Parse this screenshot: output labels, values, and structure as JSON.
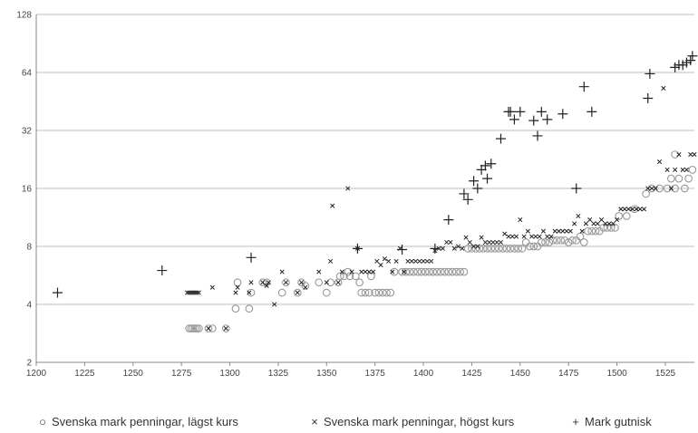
{
  "chart_data": {
    "type": "scatter",
    "title": "",
    "xlabel": "",
    "ylabel": "",
    "x_ticks": [
      1200,
      1225,
      1250,
      1275,
      1300,
      1325,
      1350,
      1375,
      1400,
      1425,
      1450,
      1475,
      1500,
      1525
    ],
    "y_ticks": [
      2,
      4,
      8,
      16,
      32,
      64,
      128
    ],
    "xlim": [
      1200,
      1540
    ],
    "ylim": [
      2,
      128
    ],
    "y_scale": "log2",
    "grid": "horizontal",
    "legend_position": "bottom",
    "series": [
      {
        "name": "Svenska mark penningar, lägst kurs",
        "marker": "circle",
        "color": "#999999",
        "points": [
          [
            1279,
            3
          ],
          [
            1280,
            3
          ],
          [
            1281,
            3
          ],
          [
            1282,
            3
          ],
          [
            1283,
            3
          ],
          [
            1284,
            3
          ],
          [
            1289,
            3
          ],
          [
            1291,
            3
          ],
          [
            1298,
            3
          ],
          [
            1303,
            3.8
          ],
          [
            1304,
            5.2
          ],
          [
            1310,
            3.8
          ],
          [
            1311,
            4.6
          ],
          [
            1317,
            5.2
          ],
          [
            1319,
            5.2
          ],
          [
            1327,
            4.6
          ],
          [
            1329,
            5.2
          ],
          [
            1335,
            4.6
          ],
          [
            1337,
            5.2
          ],
          [
            1339,
            5
          ],
          [
            1346,
            5.2
          ],
          [
            1350,
            4.6
          ],
          [
            1352,
            5.2
          ],
          [
            1356,
            5.2
          ],
          [
            1357,
            5.6
          ],
          [
            1359,
            5.6
          ],
          [
            1361,
            5.9
          ],
          [
            1362,
            5.6
          ],
          [
            1365,
            5.6
          ],
          [
            1367,
            5.2
          ],
          [
            1368,
            4.6
          ],
          [
            1370,
            4.6
          ],
          [
            1372,
            4.6
          ],
          [
            1373,
            5.6
          ],
          [
            1375,
            4.6
          ],
          [
            1377,
            4.6
          ],
          [
            1379,
            4.6
          ],
          [
            1381,
            4.6
          ],
          [
            1383,
            4.6
          ],
          [
            1385,
            5.9
          ],
          [
            1389,
            5.9
          ],
          [
            1391,
            5.9
          ],
          [
            1393,
            5.9
          ],
          [
            1395,
            5.9
          ],
          [
            1397,
            5.9
          ],
          [
            1399,
            5.9
          ],
          [
            1401,
            5.9
          ],
          [
            1403,
            5.9
          ],
          [
            1405,
            5.9
          ],
          [
            1407,
            5.9
          ],
          [
            1409,
            5.9
          ],
          [
            1411,
            5.9
          ],
          [
            1413,
            5.9
          ],
          [
            1415,
            5.9
          ],
          [
            1417,
            5.9
          ],
          [
            1419,
            5.9
          ],
          [
            1421,
            5.9
          ],
          [
            1423,
            7.8
          ],
          [
            1425,
            7.8
          ],
          [
            1427,
            7.8
          ],
          [
            1429,
            7.8
          ],
          [
            1431,
            7.8
          ],
          [
            1433,
            7.8
          ],
          [
            1435,
            7.8
          ],
          [
            1437,
            7.8
          ],
          [
            1439,
            7.8
          ],
          [
            1441,
            7.8
          ],
          [
            1443,
            7.8
          ],
          [
            1445,
            7.8
          ],
          [
            1447,
            7.8
          ],
          [
            1449,
            7.8
          ],
          [
            1451,
            7.8
          ],
          [
            1453,
            8.4
          ],
          [
            1455,
            8
          ],
          [
            1457,
            8
          ],
          [
            1459,
            8
          ],
          [
            1461,
            8.4
          ],
          [
            1463,
            8.4
          ],
          [
            1465,
            8.4
          ],
          [
            1467,
            8.6
          ],
          [
            1469,
            8.6
          ],
          [
            1471,
            8.6
          ],
          [
            1473,
            8.6
          ],
          [
            1475,
            8.4
          ],
          [
            1477,
            8.6
          ],
          [
            1479,
            8.6
          ],
          [
            1481,
            9
          ],
          [
            1483,
            8.4
          ],
          [
            1485,
            9.6
          ],
          [
            1487,
            9.6
          ],
          [
            1489,
            9.6
          ],
          [
            1491,
            9.6
          ],
          [
            1493,
            10
          ],
          [
            1495,
            10
          ],
          [
            1497,
            10
          ],
          [
            1499,
            10
          ],
          [
            1501,
            11.5
          ],
          [
            1505,
            11.5
          ],
          [
            1509,
            12.5
          ],
          [
            1515,
            15
          ],
          [
            1518,
            16
          ],
          [
            1522,
            16
          ],
          [
            1526,
            16
          ],
          [
            1528,
            18
          ],
          [
            1530,
            16
          ],
          [
            1532,
            18
          ],
          [
            1535,
            16
          ],
          [
            1537,
            18
          ],
          [
            1539,
            20
          ],
          [
            1530,
            24
          ]
        ]
      },
      {
        "name": "Svenska mark penningar, högst kurs",
        "marker": "x",
        "color": "#222222",
        "points": [
          [
            1278,
            4.6
          ],
          [
            1279,
            4.6
          ],
          [
            1280,
            4.6
          ],
          [
            1281,
            4.6
          ],
          [
            1282,
            4.6
          ],
          [
            1283,
            4.6
          ],
          [
            1284,
            4.6
          ],
          [
            1289,
            3
          ],
          [
            1291,
            4.9
          ],
          [
            1298,
            3
          ],
          [
            1303,
            4.6
          ],
          [
            1304,
            4.9
          ],
          [
            1310,
            4.6
          ],
          [
            1311,
            5.2
          ],
          [
            1317,
            5.2
          ],
          [
            1319,
            5
          ],
          [
            1320,
            5.2
          ],
          [
            1323,
            4
          ],
          [
            1327,
            5.9
          ],
          [
            1329,
            5.2
          ],
          [
            1335,
            4.6
          ],
          [
            1337,
            5.2
          ],
          [
            1339,
            4.9
          ],
          [
            1346,
            5.9
          ],
          [
            1350,
            5.2
          ],
          [
            1352,
            6.7
          ],
          [
            1353,
            13
          ],
          [
            1356,
            5.2
          ],
          [
            1358,
            5.9
          ],
          [
            1361,
            16
          ],
          [
            1363,
            5.9
          ],
          [
            1366,
            7.8
          ],
          [
            1368,
            5.9
          ],
          [
            1370,
            5.9
          ],
          [
            1372,
            5.9
          ],
          [
            1374,
            5.9
          ],
          [
            1376,
            6.7
          ],
          [
            1378,
            6.4
          ],
          [
            1380,
            6.9
          ],
          [
            1382,
            6.7
          ],
          [
            1384,
            5.9
          ],
          [
            1386,
            6.7
          ],
          [
            1388,
            7.8
          ],
          [
            1390,
            5.9
          ],
          [
            1392,
            6.7
          ],
          [
            1394,
            6.7
          ],
          [
            1396,
            6.7
          ],
          [
            1398,
            6.7
          ],
          [
            1400,
            6.7
          ],
          [
            1402,
            6.7
          ],
          [
            1404,
            6.7
          ],
          [
            1406,
            7.6
          ],
          [
            1408,
            7.8
          ],
          [
            1410,
            7.8
          ],
          [
            1412,
            8.4
          ],
          [
            1414,
            8.4
          ],
          [
            1416,
            7.8
          ],
          [
            1418,
            8
          ],
          [
            1420,
            7.8
          ],
          [
            1422,
            8.9
          ],
          [
            1424,
            8.4
          ],
          [
            1426,
            8
          ],
          [
            1428,
            8
          ],
          [
            1430,
            8.9
          ],
          [
            1432,
            8.4
          ],
          [
            1434,
            8.4
          ],
          [
            1436,
            8.4
          ],
          [
            1438,
            8.4
          ],
          [
            1440,
            8.4
          ],
          [
            1442,
            9.3
          ],
          [
            1444,
            9
          ],
          [
            1446,
            9
          ],
          [
            1448,
            9
          ],
          [
            1450,
            11
          ],
          [
            1452,
            9
          ],
          [
            1454,
            9.6
          ],
          [
            1456,
            9
          ],
          [
            1458,
            9
          ],
          [
            1460,
            9
          ],
          [
            1462,
            9.6
          ],
          [
            1464,
            9
          ],
          [
            1466,
            9
          ],
          [
            1468,
            9.6
          ],
          [
            1470,
            9.6
          ],
          [
            1472,
            9.6
          ],
          [
            1474,
            9.6
          ],
          [
            1476,
            9.6
          ],
          [
            1478,
            10.5
          ],
          [
            1480,
            11.5
          ],
          [
            1482,
            9.6
          ],
          [
            1484,
            10.5
          ],
          [
            1486,
            11
          ],
          [
            1488,
            10.5
          ],
          [
            1490,
            10.5
          ],
          [
            1492,
            11
          ],
          [
            1494,
            10.5
          ],
          [
            1496,
            10.5
          ],
          [
            1498,
            10.5
          ],
          [
            1500,
            11
          ],
          [
            1502,
            12.5
          ],
          [
            1504,
            12.5
          ],
          [
            1506,
            12.5
          ],
          [
            1508,
            12.5
          ],
          [
            1510,
            12.5
          ],
          [
            1512,
            12.5
          ],
          [
            1514,
            12.5
          ],
          [
            1516,
            16
          ],
          [
            1518,
            16
          ],
          [
            1520,
            16
          ],
          [
            1522,
            22
          ],
          [
            1524,
            53
          ],
          [
            1526,
            20
          ],
          [
            1528,
            16
          ],
          [
            1530,
            20
          ],
          [
            1532,
            24
          ],
          [
            1534,
            20
          ],
          [
            1536,
            20
          ],
          [
            1538,
            24
          ],
          [
            1540,
            24
          ]
        ]
      },
      {
        "name": "Mark gutnisk",
        "marker": "plus",
        "color": "#222222",
        "points": [
          [
            1211,
            4.6
          ],
          [
            1265,
            6
          ],
          [
            1311,
            7
          ],
          [
            1366,
            7.8
          ],
          [
            1389,
            7.7
          ],
          [
            1406,
            7.8
          ],
          [
            1413,
            11
          ],
          [
            1421,
            15
          ],
          [
            1423,
            14
          ],
          [
            1426,
            17.5
          ],
          [
            1428,
            16
          ],
          [
            1430,
            20
          ],
          [
            1432,
            21
          ],
          [
            1433,
            18
          ],
          [
            1435,
            21.5
          ],
          [
            1440,
            29
          ],
          [
            1444,
            40
          ],
          [
            1445,
            40
          ],
          [
            1447,
            36.5
          ],
          [
            1450,
            40
          ],
          [
            1457,
            36
          ],
          [
            1459,
            30
          ],
          [
            1461,
            40
          ],
          [
            1464,
            36.5
          ],
          [
            1472,
            39
          ],
          [
            1479,
            16
          ],
          [
            1483,
            54
          ],
          [
            1487,
            40
          ],
          [
            1516,
            47
          ],
          [
            1517,
            63
          ],
          [
            1530,
            68
          ],
          [
            1532,
            70
          ],
          [
            1534,
            70
          ],
          [
            1536,
            72
          ],
          [
            1538,
            74
          ],
          [
            1539,
            78
          ]
        ]
      }
    ]
  },
  "legend": {
    "items": [
      {
        "symbol": "○",
        "label": "Svenska mark penningar, lägst kurs"
      },
      {
        "symbol": "×",
        "label": "Svenska mark penningar, högst kurs"
      },
      {
        "symbol": "+",
        "label": "Mark gutnisk"
      }
    ]
  }
}
